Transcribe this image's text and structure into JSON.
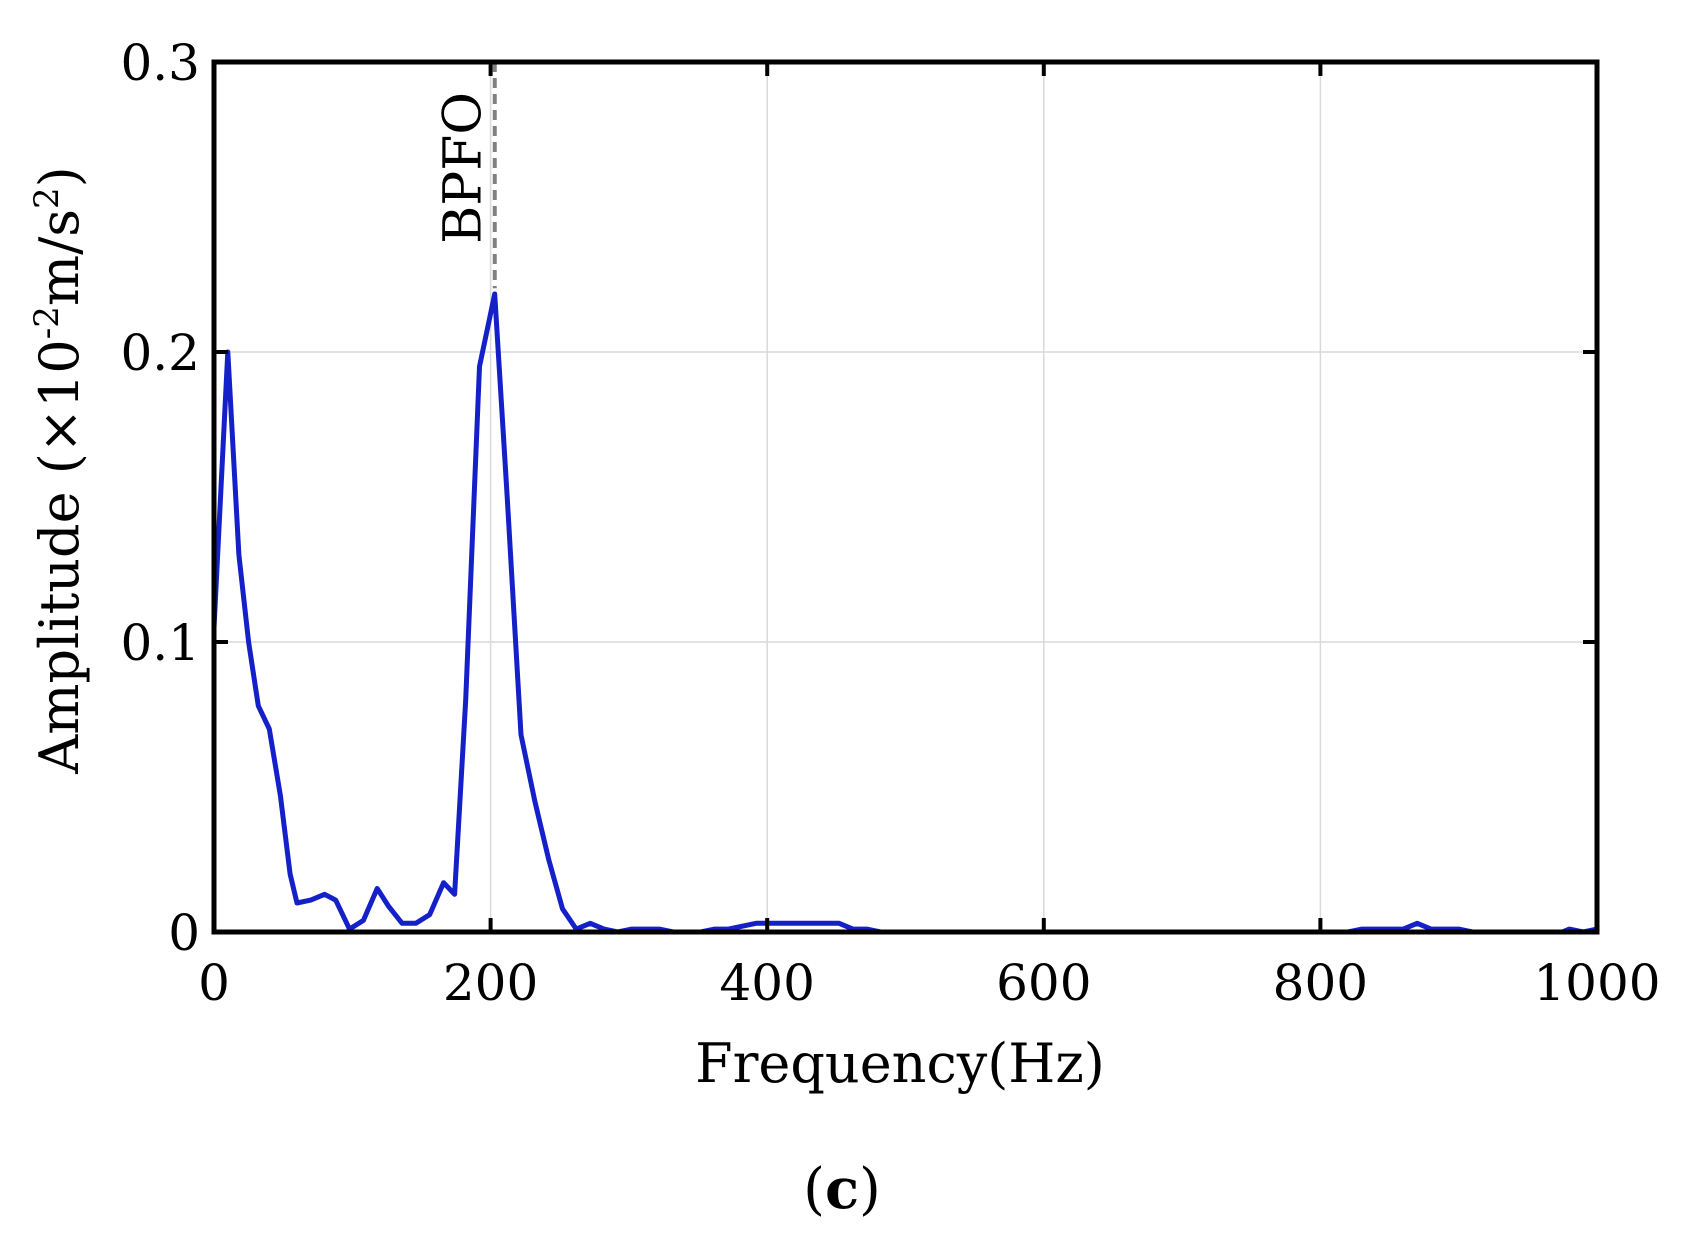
{
  "chart_data": {
    "type": "line",
    "xlabel": "Frequency(Hz)",
    "ylabel_main": "Amplitude (×10",
    "ylabel_exp": "-2",
    "ylabel_unit": "m/s",
    "ylabel_unit_exp": "2",
    "ylabel_close": ")",
    "xlim": [
      0,
      1000
    ],
    "ylim": [
      0,
      0.3
    ],
    "xticks": [
      "0",
      "200",
      "400",
      "600",
      "800",
      "1000"
    ],
    "yticks": [
      "0",
      "0.1",
      "0.2",
      "0.3"
    ],
    "grid": true,
    "line_color": "#1420c8",
    "panel_label": "c",
    "panel_label_open": "(",
    "panel_label_close": ")",
    "annotations": [
      {
        "text": "BPFO",
        "x": 203,
        "color": "#808080"
      }
    ],
    "series": [
      {
        "x": [
          0,
          10,
          18,
          25,
          32,
          40,
          48,
          55,
          60,
          70,
          80,
          88,
          98,
          108,
          118,
          126,
          136,
          146,
          156,
          166,
          174,
          182,
          192,
          203,
          212,
          222,
          232,
          242,
          252,
          262,
          272,
          282,
          292,
          302,
          312,
          322,
          332,
          342,
          352,
          362,
          372,
          382,
          392,
          402,
          412,
          422,
          432,
          442,
          452,
          462,
          472,
          482,
          500,
          600,
          700,
          820,
          830,
          840,
          850,
          860,
          870,
          880,
          890,
          900,
          910,
          960,
          975,
          980,
          990,
          1000
        ],
        "values": [
          0.105,
          0.2,
          0.13,
          0.1,
          0.078,
          0.07,
          0.047,
          0.02,
          0.01,
          0.011,
          0.013,
          0.011,
          0.001,
          0.004,
          0.015,
          0.009,
          0.003,
          0.003,
          0.006,
          0.017,
          0.013,
          0.08,
          0.195,
          0.22,
          0.15,
          0.068,
          0.045,
          0.025,
          0.008,
          0.001,
          0.003,
          0.001,
          0,
          0.001,
          0.001,
          0.001,
          0,
          0,
          0,
          0.001,
          0.001,
          0.002,
          0.003,
          0.003,
          0.003,
          0.003,
          0.003,
          0.003,
          0.003,
          0.001,
          0.001,
          0,
          0,
          0,
          0,
          0,
          0.001,
          0.001,
          0.001,
          0.001,
          0.003,
          0.001,
          0.001,
          0.001,
          0,
          0,
          0,
          0.001,
          0,
          0.001
        ]
      }
    ]
  }
}
